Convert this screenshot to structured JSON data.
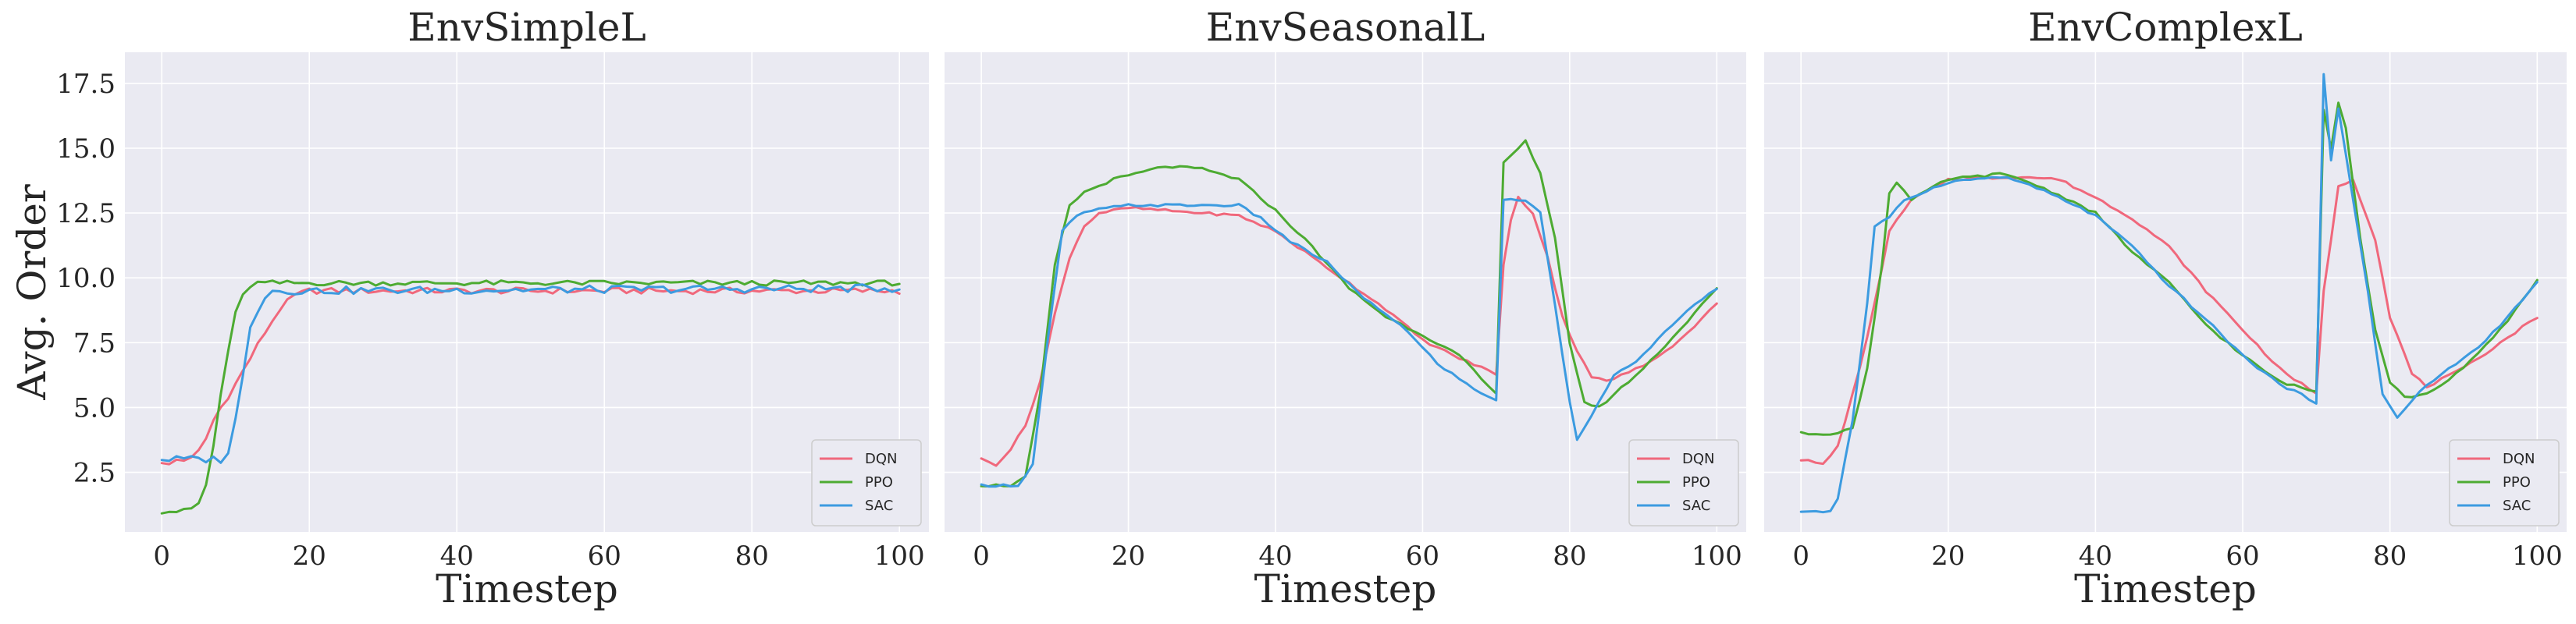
{
  "figure": {
    "ylabel": "Avg. Order",
    "xlabel": "Timestep"
  },
  "colors": {
    "DQN": "#f0687c",
    "PPO": "#4dab32",
    "SAC": "#3c9be0"
  },
  "chart_data": [
    {
      "type": "line",
      "title": "EnvSimpleL",
      "xlabel": "Timestep",
      "ylabel": "Avg. Order",
      "xlim": [
        -5,
        104
      ],
      "ylim": [
        0.2,
        18.7
      ],
      "xticks": [
        0,
        20,
        40,
        60,
        80,
        100
      ],
      "yticks": [
        2.5,
        5.0,
        7.5,
        10.0,
        12.5,
        15.0,
        17.5
      ],
      "grid": true,
      "legend": "lower-right",
      "series": [
        {
          "name": "DQN",
          "keyframes": [
            [
              0,
              2.8
            ],
            [
              1,
              2.8
            ],
            [
              2,
              3.0
            ],
            [
              4,
              3.0
            ],
            [
              5,
              3.3
            ],
            [
              6,
              3.8
            ],
            [
              7,
              4.5
            ],
            [
              8,
              5.0
            ],
            [
              10,
              5.9
            ],
            [
              12,
              6.9
            ],
            [
              14,
              7.9
            ],
            [
              16,
              8.8
            ],
            [
              18,
              9.3
            ],
            [
              20,
              9.5
            ],
            [
              100,
              9.5
            ]
          ],
          "noise": 0.12
        },
        {
          "name": "PPO",
          "keyframes": [
            [
              0,
              1.0
            ],
            [
              3,
              1.0
            ],
            [
              4,
              1.1
            ],
            [
              5,
              1.3
            ],
            [
              6,
              2.0
            ],
            [
              7,
              3.5
            ],
            [
              8,
              5.5
            ],
            [
              9,
              7.2
            ],
            [
              10,
              8.6
            ],
            [
              11,
              9.3
            ],
            [
              12,
              9.7
            ],
            [
              13,
              9.8
            ],
            [
              100,
              9.8
            ]
          ],
          "noise": 0.1
        },
        {
          "name": "SAC",
          "keyframes": [
            [
              0,
              3.0
            ],
            [
              8,
              3.0
            ],
            [
              9,
              3.3
            ],
            [
              10,
              4.5
            ],
            [
              11,
              6.2
            ],
            [
              12,
              8.2
            ],
            [
              13,
              8.8
            ],
            [
              14,
              9.3
            ],
            [
              15,
              9.5
            ],
            [
              100,
              9.6
            ]
          ],
          "noise": 0.15
        }
      ]
    },
    {
      "type": "line",
      "title": "EnvSeasonalL",
      "xlabel": "Timestep",
      "ylabel": "",
      "xlim": [
        -5,
        104
      ],
      "ylim": [
        0.2,
        18.7
      ],
      "xticks": [
        0,
        20,
        40,
        60,
        80,
        100
      ],
      "yticks": [
        2.5,
        5.0,
        7.5,
        10.0,
        12.5,
        15.0,
        17.5
      ],
      "grid": true,
      "legend": "lower-right",
      "series": [
        {
          "name": "DQN",
          "keyframes": [
            [
              0,
              3.0
            ],
            [
              2,
              2.8
            ],
            [
              4,
              3.4
            ],
            [
              6,
              4.3
            ],
            [
              8,
              6.0
            ],
            [
              10,
              8.6
            ],
            [
              12,
              10.8
            ],
            [
              14,
              12.0
            ],
            [
              16,
              12.5
            ],
            [
              20,
              12.7
            ],
            [
              30,
              12.5
            ],
            [
              35,
              12.4
            ],
            [
              40,
              11.8
            ],
            [
              45,
              10.8
            ],
            [
              50,
              9.8
            ],
            [
              55,
              8.8
            ],
            [
              60,
              7.6
            ],
            [
              65,
              6.9
            ],
            [
              70,
              6.3
            ],
            [
              71,
              10.5
            ],
            [
              72,
              12.2
            ],
            [
              73,
              13.1
            ],
            [
              75,
              12.5
            ],
            [
              77,
              10.8
            ],
            [
              79,
              8.5
            ],
            [
              81,
              7.2
            ],
            [
              83,
              6.2
            ],
            [
              85,
              6.0
            ],
            [
              90,
              6.6
            ],
            [
              95,
              7.6
            ],
            [
              100,
              9.0
            ]
          ],
          "noise": 0.05
        },
        {
          "name": "PPO",
          "keyframes": [
            [
              0,
              2.0
            ],
            [
              4,
              2.0
            ],
            [
              6,
              2.3
            ],
            [
              8,
              5.5
            ],
            [
              10,
              10.5
            ],
            [
              12,
              12.8
            ],
            [
              14,
              13.3
            ],
            [
              18,
              13.8
            ],
            [
              25,
              14.3
            ],
            [
              30,
              14.2
            ],
            [
              35,
              13.8
            ],
            [
              40,
              12.6
            ],
            [
              45,
              11.2
            ],
            [
              50,
              9.6
            ],
            [
              55,
              8.5
            ],
            [
              60,
              7.8
            ],
            [
              65,
              7.0
            ],
            [
              70,
              5.5
            ],
            [
              71,
              14.5
            ],
            [
              73,
              15.0
            ],
            [
              74,
              15.3
            ],
            [
              76,
              14.0
            ],
            [
              78,
              11.5
            ],
            [
              80,
              7.5
            ],
            [
              82,
              5.2
            ],
            [
              84,
              5.0
            ],
            [
              90,
              6.5
            ],
            [
              95,
              8.0
            ],
            [
              100,
              9.6
            ]
          ],
          "noise": 0.05
        },
        {
          "name": "SAC",
          "keyframes": [
            [
              0,
              2.0
            ],
            [
              5,
              2.0
            ],
            [
              7,
              2.8
            ],
            [
              9,
              7.5
            ],
            [
              11,
              11.8
            ],
            [
              13,
              12.4
            ],
            [
              15,
              12.6
            ],
            [
              20,
              12.8
            ],
            [
              30,
              12.8
            ],
            [
              35,
              12.8
            ],
            [
              38,
              12.3
            ],
            [
              42,
              11.4
            ],
            [
              47,
              10.6
            ],
            [
              52,
              9.2
            ],
            [
              57,
              8.2
            ],
            [
              62,
              6.7
            ],
            [
              67,
              5.7
            ],
            [
              70,
              5.3
            ],
            [
              71,
              13.0
            ],
            [
              74,
              13.0
            ],
            [
              76,
              12.5
            ],
            [
              78,
              9.0
            ],
            [
              80,
              5.2
            ],
            [
              81,
              3.8
            ],
            [
              84,
              5.2
            ],
            [
              86,
              6.2
            ],
            [
              90,
              7.0
            ],
            [
              95,
              8.5
            ],
            [
              100,
              9.6
            ]
          ],
          "noise": 0.05
        }
      ]
    },
    {
      "type": "line",
      "title": "EnvComplexL",
      "xlabel": "Timestep",
      "ylabel": "",
      "xlim": [
        -5,
        104
      ],
      "ylim": [
        0.2,
        18.7
      ],
      "xticks": [
        0,
        20,
        40,
        60,
        80,
        100
      ],
      "yticks": [
        2.5,
        5.0,
        7.5,
        10.0,
        12.5,
        15.0,
        17.5
      ],
      "grid": true,
      "legend": "lower-right",
      "series": [
        {
          "name": "DQN",
          "keyframes": [
            [
              0,
              3.0
            ],
            [
              3,
              2.8
            ],
            [
              5,
              3.5
            ],
            [
              8,
              6.5
            ],
            [
              10,
              9.0
            ],
            [
              12,
              11.8
            ],
            [
              15,
              13.0
            ],
            [
              20,
              13.8
            ],
            [
              30,
              13.9
            ],
            [
              35,
              13.8
            ],
            [
              40,
              13.1
            ],
            [
              45,
              12.3
            ],
            [
              50,
              11.2
            ],
            [
              55,
              9.5
            ],
            [
              60,
              8.0
            ],
            [
              65,
              6.5
            ],
            [
              70,
              5.5
            ],
            [
              71,
              9.5
            ],
            [
              73,
              13.5
            ],
            [
              75,
              13.8
            ],
            [
              78,
              11.5
            ],
            [
              80,
              8.5
            ],
            [
              83,
              6.3
            ],
            [
              85,
              5.8
            ],
            [
              90,
              6.5
            ],
            [
              95,
              7.5
            ],
            [
              100,
              8.5
            ]
          ],
          "noise": 0.05
        },
        {
          "name": "PPO",
          "keyframes": [
            [
              0,
              4.0
            ],
            [
              5,
              4.0
            ],
            [
              7,
              4.2
            ],
            [
              9,
              6.5
            ],
            [
              11,
              10.5
            ],
            [
              12,
              13.3
            ],
            [
              13,
              13.7
            ],
            [
              15,
              13.0
            ],
            [
              18,
              13.5
            ],
            [
              20,
              13.8
            ],
            [
              27,
              14.0
            ],
            [
              30,
              13.8
            ],
            [
              35,
              13.2
            ],
            [
              40,
              12.5
            ],
            [
              45,
              11.0
            ],
            [
              50,
              9.8
            ],
            [
              55,
              8.2
            ],
            [
              60,
              7.0
            ],
            [
              65,
              6.0
            ],
            [
              70,
              5.6
            ],
            [
              71,
              16.5
            ],
            [
              72,
              15.0
            ],
            [
              73,
              16.8
            ],
            [
              74,
              15.8
            ],
            [
              76,
              11.5
            ],
            [
              78,
              8.0
            ],
            [
              80,
              6.0
            ],
            [
              82,
              5.4
            ],
            [
              85,
              5.5
            ],
            [
              90,
              6.5
            ],
            [
              95,
              8.0
            ],
            [
              100,
              9.9
            ]
          ],
          "noise": 0.05
        },
        {
          "name": "SAC",
          "keyframes": [
            [
              0,
              1.0
            ],
            [
              4,
              1.0
            ],
            [
              5,
              1.5
            ],
            [
              7,
              4.5
            ],
            [
              9,
              9.0
            ],
            [
              10,
              12.0
            ],
            [
              12,
              12.3
            ],
            [
              14,
              13.0
            ],
            [
              20,
              13.7
            ],
            [
              27,
              13.9
            ],
            [
              30,
              13.7
            ],
            [
              35,
              13.1
            ],
            [
              40,
              12.4
            ],
            [
              45,
              11.2
            ],
            [
              50,
              9.7
            ],
            [
              55,
              8.4
            ],
            [
              60,
              7.0
            ],
            [
              65,
              5.9
            ],
            [
              70,
              5.2
            ],
            [
              71,
              17.9
            ],
            [
              72,
              14.5
            ],
            [
              73,
              16.5
            ],
            [
              75,
              13.0
            ],
            [
              77,
              9.5
            ],
            [
              79,
              5.5
            ],
            [
              81,
              4.6
            ],
            [
              84,
              5.6
            ],
            [
              88,
              6.5
            ],
            [
              92,
              7.3
            ],
            [
              96,
              8.5
            ],
            [
              100,
              9.8
            ]
          ],
          "noise": 0.05
        }
      ]
    }
  ]
}
